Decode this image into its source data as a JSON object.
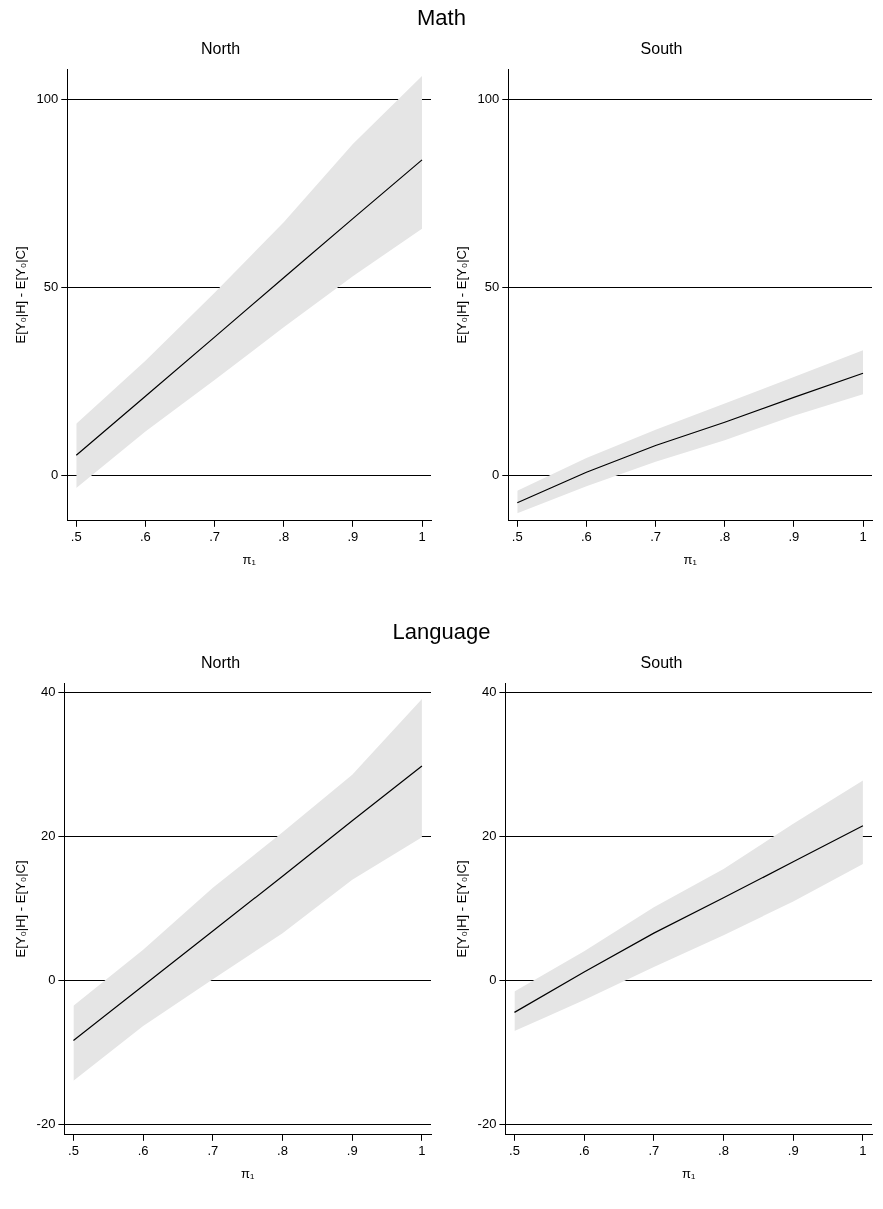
{
  "chart_data": [
    {
      "type": "line",
      "title": "North",
      "annotations": [
        "Math"
      ],
      "xlabel": "π₁",
      "ylabel": "E[Y₀|H] - E[Y₀|C]",
      "x": [
        0.5,
        0.6,
        0.7,
        0.8,
        0.9,
        1
      ],
      "xlim": [
        0.487,
        1.013
      ],
      "xticks": [
        {
          "value": 0.5,
          "label": ".5"
        },
        {
          "value": 0.6,
          "label": ".6"
        },
        {
          "value": 0.7,
          "label": ".7"
        },
        {
          "value": 0.8,
          "label": ".8"
        },
        {
          "value": 0.9,
          "label": ".9"
        },
        {
          "value": 1,
          "label": "1"
        }
      ],
      "ylim": [
        -12,
        108
      ],
      "yticks": [
        0,
        50,
        100
      ],
      "grid": "y",
      "series": [
        {
          "color": "#000000",
          "values": [
            5.4,
            21.1,
            36.8,
            52.6,
            68.3,
            83.9
          ],
          "lower": [
            -3.3,
            11.7,
            25.4,
            39.4,
            53,
            65.6
          ],
          "upper": [
            13.8,
            30.5,
            48.6,
            67.3,
            88.1,
            106.2
          ]
        }
      ]
    },
    {
      "type": "line",
      "title": "South",
      "xlabel": "π₁",
      "ylabel": "E[Y₀|H] - E[Y₀|C]",
      "x": [
        0.5,
        0.6,
        0.7,
        0.8,
        0.9,
        1
      ],
      "xlim": [
        0.487,
        1.013
      ],
      "xticks": [
        {
          "value": 0.5,
          "label": ".5"
        },
        {
          "value": 0.6,
          "label": ".6"
        },
        {
          "value": 0.7,
          "label": ".7"
        },
        {
          "value": 0.8,
          "label": ".8"
        },
        {
          "value": 0.9,
          "label": ".9"
        },
        {
          "value": 1,
          "label": "1"
        }
      ],
      "ylim": [
        -12,
        108
      ],
      "yticks": [
        0,
        50,
        100
      ],
      "grid": "y",
      "series": [
        {
          "color": "#000000",
          "values": [
            -7.2,
            0.9,
            8,
            14.2,
            20.8,
            27.2
          ],
          "lower": [
            -10,
            -2.8,
            3.7,
            9.4,
            15.9,
            21.6
          ],
          "upper": [
            -4,
            4.7,
            12.2,
            19.2,
            26.2,
            33.3
          ]
        }
      ]
    },
    {
      "type": "line",
      "title": "North",
      "annotations": [
        "Language"
      ],
      "xlabel": "π₁",
      "ylabel": "E[Y₀|H] - E[Y₀|C]",
      "x": [
        0.5,
        0.6,
        0.7,
        0.8,
        0.9,
        1
      ],
      "xlim": [
        0.487,
        1.013
      ],
      "xticks": [
        {
          "value": 0.5,
          "label": ".5"
        },
        {
          "value": 0.6,
          "label": ".6"
        },
        {
          "value": 0.7,
          "label": ".7"
        },
        {
          "value": 0.8,
          "label": ".8"
        },
        {
          "value": 0.9,
          "label": ".9"
        },
        {
          "value": 1,
          "label": "1"
        }
      ],
      "ylim": [
        -21.4,
        41.3
      ],
      "yticks": [
        -20,
        0,
        20,
        40
      ],
      "grid": "y",
      "series": [
        {
          "color": "#000000",
          "values": [
            -8.3,
            -0.7,
            6.9,
            14.5,
            22.2,
            29.8
          ],
          "lower": [
            -13.9,
            -6.3,
            0.2,
            6.6,
            14,
            19.9
          ],
          "upper": [
            -3.5,
            4.3,
            12.9,
            20.6,
            28.6,
            39.1
          ]
        }
      ]
    },
    {
      "type": "line",
      "title": "South",
      "xlabel": "π₁",
      "ylabel": "E[Y₀|H] - E[Y₀|C]",
      "x": [
        0.5,
        0.6,
        0.7,
        0.8,
        0.9,
        1
      ],
      "xlim": [
        0.487,
        1.013
      ],
      "xticks": [
        {
          "value": 0.5,
          "label": ".5"
        },
        {
          "value": 0.6,
          "label": ".6"
        },
        {
          "value": 0.7,
          "label": ".7"
        },
        {
          "value": 0.8,
          "label": ".8"
        },
        {
          "value": 0.9,
          "label": ".9"
        },
        {
          "value": 1,
          "label": "1"
        }
      ],
      "ylim": [
        -21.4,
        41.3
      ],
      "yticks": [
        -20,
        0,
        20,
        40
      ],
      "grid": "y",
      "series": [
        {
          "color": "#000000",
          "values": [
            -4.4,
            1.2,
            6.6,
            11.5,
            16.5,
            21.5
          ],
          "lower": [
            -7,
            -2.7,
            1.9,
            6.3,
            11,
            16.2
          ],
          "upper": [
            -1.5,
            4.1,
            10.2,
            15.5,
            21.8,
            27.8
          ]
        }
      ]
    }
  ]
}
